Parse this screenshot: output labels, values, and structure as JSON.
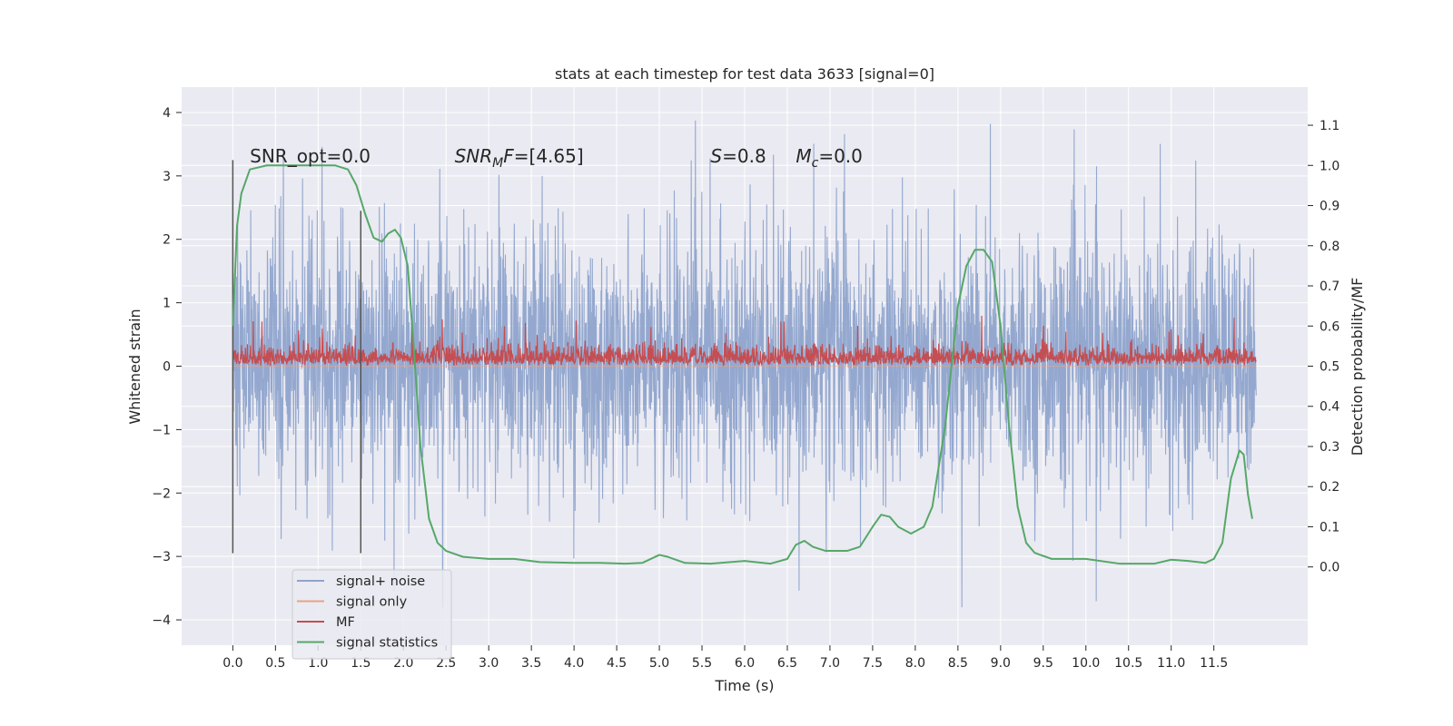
{
  "chart_data": {
    "type": "line",
    "title": "stats at each timestep for test data 3633 [signal=0]",
    "xlabel": "Time (s)",
    "ylabel": "Whitened strain",
    "y2label": "Detection probability/MF",
    "xlim": [
      -0.6,
      12.6
    ],
    "ylim": [
      -4.4,
      4.4
    ],
    "y2lim": [
      -0.195,
      1.195
    ],
    "xticks": [
      "0.0",
      "0.5",
      "1.0",
      "1.5",
      "2.0",
      "2.5",
      "3.0",
      "3.5",
      "4.0",
      "4.5",
      "5.0",
      "5.5",
      "6.0",
      "6.5",
      "7.0",
      "7.5",
      "8.0",
      "8.5",
      "9.0",
      "9.5",
      "10.0",
      "10.5",
      "11.0",
      "11.5"
    ],
    "yticks": [
      "4",
      "3",
      "2",
      "1",
      "0",
      "−1",
      "−2",
      "−3",
      "−4"
    ],
    "y2ticks": [
      "1.1",
      "1.0",
      "0.9",
      "0.8",
      "0.7",
      "0.6",
      "0.5",
      "0.4",
      "0.3",
      "0.2",
      "0.1",
      "0.0"
    ],
    "grid": true,
    "legend_position": "bottom-left",
    "series": [
      {
        "name": "signal+ noise",
        "axis": "left",
        "color": "#8fa4cc",
        "style": "dense noise, approx. -1.7 to 2.0 core band, peaks to 4.1 and troughs to -3.8",
        "duration_s": 12.0
      },
      {
        "name": "signal only",
        "axis": "left",
        "color": "#e8a487",
        "values_note": "flat at 0"
      },
      {
        "name": "MF",
        "axis": "right",
        "color": "#c44e52",
        "style": "dense band between approx. 0.49 and 0.56 (right axis), spikes to 0.63"
      },
      {
        "name": "signal statistics",
        "axis": "right",
        "color": "#55a868",
        "points": [
          [
            0.0,
            0.6
          ],
          [
            0.05,
            0.85
          ],
          [
            0.1,
            0.93
          ],
          [
            0.2,
            0.99
          ],
          [
            0.4,
            1.0
          ],
          [
            0.8,
            1.0
          ],
          [
            1.2,
            1.0
          ],
          [
            1.35,
            0.99
          ],
          [
            1.45,
            0.95
          ],
          [
            1.55,
            0.88
          ],
          [
            1.65,
            0.82
          ],
          [
            1.75,
            0.81
          ],
          [
            1.82,
            0.83
          ],
          [
            1.9,
            0.84
          ],
          [
            1.97,
            0.82
          ],
          [
            2.05,
            0.75
          ],
          [
            2.12,
            0.55
          ],
          [
            2.2,
            0.3
          ],
          [
            2.3,
            0.12
          ],
          [
            2.4,
            0.06
          ],
          [
            2.5,
            0.04
          ],
          [
            2.7,
            0.025
          ],
          [
            3.0,
            0.02
          ],
          [
            3.3,
            0.02
          ],
          [
            3.6,
            0.012
          ],
          [
            4.0,
            0.01
          ],
          [
            4.3,
            0.01
          ],
          [
            4.6,
            0.008
          ],
          [
            4.8,
            0.01
          ],
          [
            5.0,
            0.03
          ],
          [
            5.1,
            0.025
          ],
          [
            5.3,
            0.01
          ],
          [
            5.6,
            0.008
          ],
          [
            6.0,
            0.015
          ],
          [
            6.3,
            0.008
          ],
          [
            6.5,
            0.02
          ],
          [
            6.6,
            0.055
          ],
          [
            6.7,
            0.065
          ],
          [
            6.8,
            0.05
          ],
          [
            6.95,
            0.04
          ],
          [
            7.2,
            0.04
          ],
          [
            7.35,
            0.05
          ],
          [
            7.5,
            0.1
          ],
          [
            7.6,
            0.13
          ],
          [
            7.7,
            0.125
          ],
          [
            7.8,
            0.1
          ],
          [
            7.95,
            0.083
          ],
          [
            8.1,
            0.1
          ],
          [
            8.2,
            0.15
          ],
          [
            8.35,
            0.35
          ],
          [
            8.5,
            0.65
          ],
          [
            8.6,
            0.75
          ],
          [
            8.7,
            0.79
          ],
          [
            8.8,
            0.79
          ],
          [
            8.9,
            0.76
          ],
          [
            9.0,
            0.6
          ],
          [
            9.1,
            0.35
          ],
          [
            9.2,
            0.15
          ],
          [
            9.3,
            0.06
          ],
          [
            9.4,
            0.035
          ],
          [
            9.6,
            0.02
          ],
          [
            10.0,
            0.02
          ],
          [
            10.4,
            0.008
          ],
          [
            10.8,
            0.008
          ],
          [
            11.0,
            0.018
          ],
          [
            11.2,
            0.015
          ],
          [
            11.4,
            0.01
          ],
          [
            11.5,
            0.02
          ],
          [
            11.6,
            0.06
          ],
          [
            11.7,
            0.22
          ],
          [
            11.8,
            0.29
          ],
          [
            11.85,
            0.28
          ],
          [
            11.9,
            0.18
          ],
          [
            11.95,
            0.12
          ]
        ]
      }
    ],
    "vlines": [
      {
        "x": 0.0,
        "ymin": -2.95,
        "ymax": 3.25
      },
      {
        "x": 1.5,
        "ymin": -2.95,
        "ymax": 2.45
      }
    ],
    "annotations": [
      {
        "id": "snr-opt",
        "text": "SNR_opt=0.0",
        "x": 0.2,
        "y": 3.3
      },
      {
        "id": "snr-mf",
        "prefix_italic": "SNR",
        "sub_italic": "M",
        "italic_tail": "F",
        "suffix": "=[4.65]",
        "x": 2.6,
        "y": 3.3
      },
      {
        "id": "spin",
        "italic": "S",
        "suffix": "=0.8",
        "x": 5.6,
        "y": 3.3
      },
      {
        "id": "chirp-mass",
        "italic": "M",
        "sub_italic": "c",
        "suffix": "=0.0",
        "x": 6.6,
        "y": 3.3
      }
    ]
  }
}
